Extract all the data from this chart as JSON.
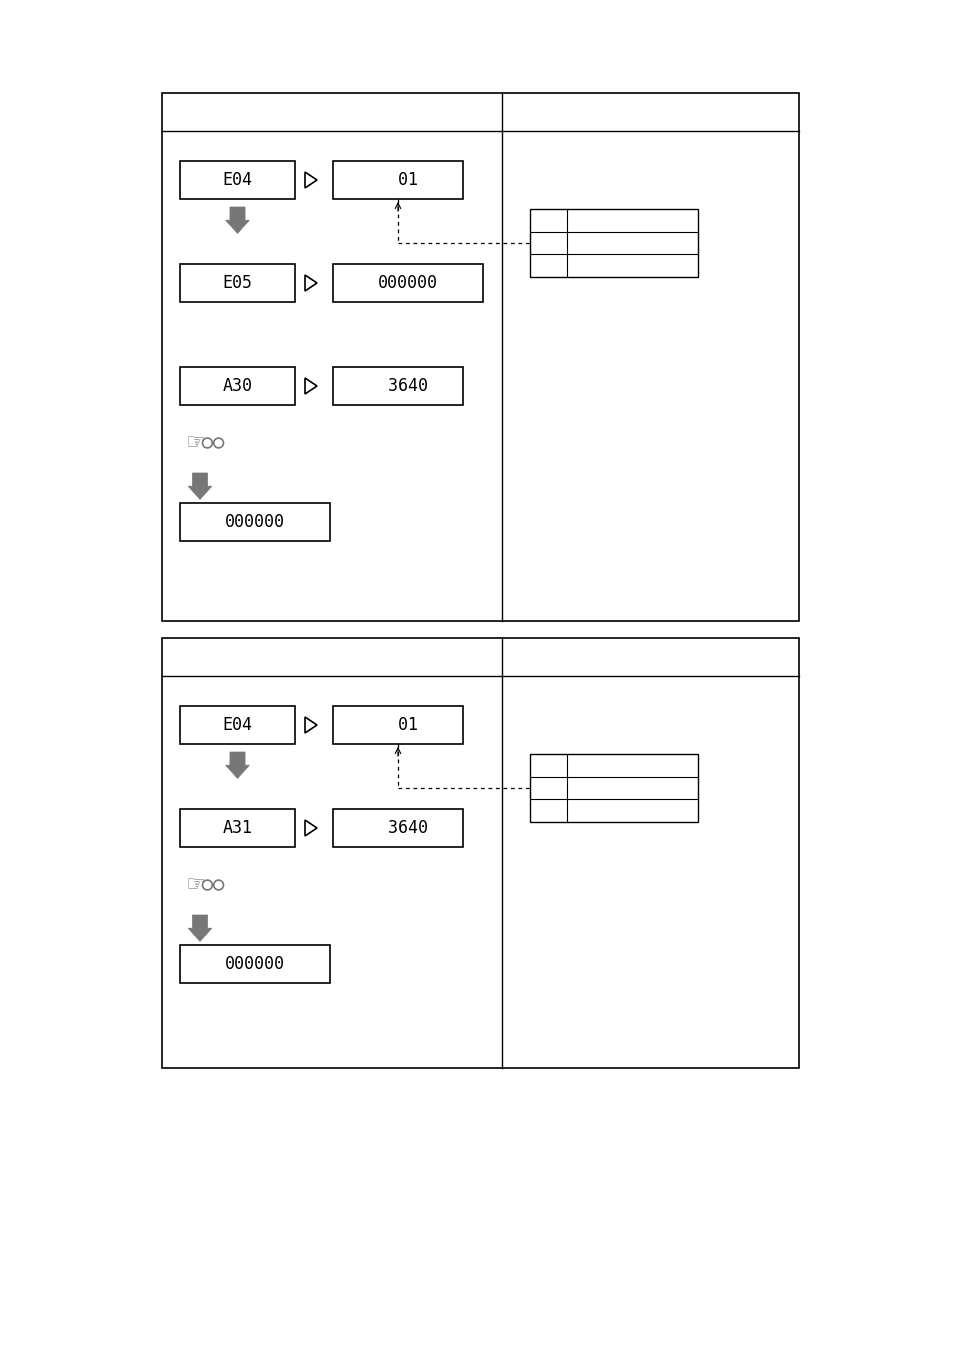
{
  "fig_width": 9.54,
  "fig_height": 13.51,
  "bg_color": "#ffffff",
  "panel1": {
    "e04_label": "E04",
    "e04_value": "  01",
    "e05_label": "E05",
    "e05_value": "000000",
    "a_label": "A30",
    "a_value": "  3640",
    "final_value": "000000"
  },
  "panel2": {
    "e04_label": "E04",
    "e04_value": "  01",
    "a_label": "A31",
    "a_value": "  3640",
    "final_value": "000000"
  },
  "gray_color": "#777777",
  "black_color": "#000000"
}
